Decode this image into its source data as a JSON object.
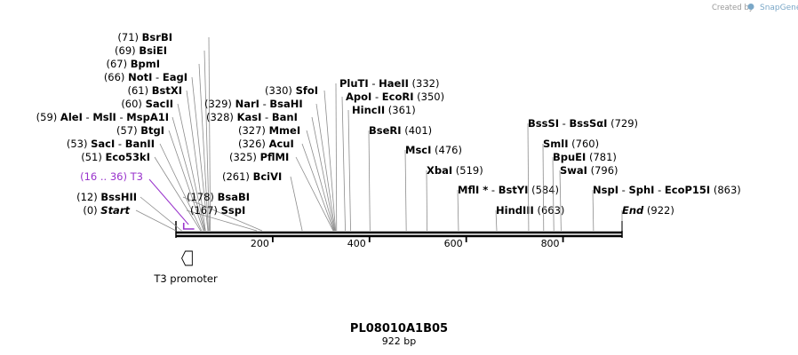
{
  "credit": {
    "prefix": "Created by",
    "brand": "SnapGene"
  },
  "sequence": {
    "name": "PL08010A1B05",
    "length_label": "922 bp",
    "length": 922
  },
  "axis_ticks": [
    {
      "value": 200,
      "label": "200"
    },
    {
      "value": 400,
      "label": "400"
    },
    {
      "value": 600,
      "label": "600"
    },
    {
      "value": 800,
      "label": "800"
    }
  ],
  "features": [
    {
      "name": "T3 promoter",
      "start": 1,
      "end": 19,
      "strand": "reverse"
    }
  ],
  "primers": [
    {
      "name": "T3",
      "range": "(16 .. 36)",
      "start": 16,
      "end": 36
    }
  ],
  "sites": [
    {
      "id": "bsrbi",
      "pos_label": "(71)",
      "pos": 71,
      "names": [
        "BsrBI"
      ]
    },
    {
      "id": "bsiei",
      "pos_label": "(69)",
      "pos": 69,
      "names": [
        "BsiEI"
      ]
    },
    {
      "id": "bpmi",
      "pos_label": "(67)",
      "pos": 67,
      "names": [
        "BpmI"
      ]
    },
    {
      "id": "noti",
      "pos_label": "(66)",
      "pos": 66,
      "names": [
        "NotI",
        "EagI"
      ]
    },
    {
      "id": "bstxi",
      "pos_label": "(61)",
      "pos": 61,
      "names": [
        "BstXI"
      ]
    },
    {
      "id": "sacii",
      "pos_label": "(60)",
      "pos": 60,
      "names": [
        "SacII"
      ]
    },
    {
      "id": "alei",
      "pos_label": "(59)",
      "pos": 59,
      "names": [
        "AleI",
        "MslI",
        "MspA1I"
      ]
    },
    {
      "id": "btgi",
      "pos_label": "(57)",
      "pos": 57,
      "names": [
        "BtgI"
      ]
    },
    {
      "id": "saci",
      "pos_label": "(53)",
      "pos": 53,
      "names": [
        "SacI",
        "BanII"
      ]
    },
    {
      "id": "eco53ki",
      "pos_label": "(51)",
      "pos": 51,
      "names": [
        "Eco53kI"
      ]
    },
    {
      "id": "bsshii",
      "pos_label": "(12)",
      "pos": 12,
      "names": [
        "BssHII"
      ]
    },
    {
      "id": "start",
      "pos_label": "(0)",
      "pos": 0,
      "names": [
        "Start"
      ]
    },
    {
      "id": "bsabi",
      "pos_label": "(178)",
      "pos": 178,
      "names": [
        "BsaBI"
      ]
    },
    {
      "id": "sspi",
      "pos_label": "(167)",
      "pos": 167,
      "names": [
        "SspI"
      ]
    },
    {
      "id": "sfoi",
      "pos_label": "(330)",
      "pos": 330,
      "names": [
        "SfoI"
      ]
    },
    {
      "id": "nari",
      "pos_label": "(329)",
      "pos": 329,
      "names": [
        "NarI",
        "BsaHI"
      ]
    },
    {
      "id": "kasi",
      "pos_label": "(328)",
      "pos": 328,
      "names": [
        "KasI",
        "BanI"
      ]
    },
    {
      "id": "mmei",
      "pos_label": "(327)",
      "pos": 327,
      "names": [
        "MmeI"
      ]
    },
    {
      "id": "acui",
      "pos_label": "(326)",
      "pos": 326,
      "names": [
        "AcuI"
      ]
    },
    {
      "id": "pflmi",
      "pos_label": "(325)",
      "pos": 325,
      "names": [
        "PflMI"
      ]
    },
    {
      "id": "bcivi",
      "pos_label": "(261)",
      "pos": 261,
      "names": [
        "BciVI"
      ]
    },
    {
      "id": "pluti",
      "pos_label": "(332)",
      "pos": 332,
      "names": [
        "PluTI",
        "HaeII"
      ]
    },
    {
      "id": "apoi",
      "pos_label": "(350)",
      "pos": 350,
      "names": [
        "ApoI",
        "EcoRI"
      ]
    },
    {
      "id": "hincii",
      "pos_label": "(361)",
      "pos": 361,
      "names": [
        "HincII"
      ]
    },
    {
      "id": "bseri",
      "pos_label": "(401)",
      "pos": 401,
      "names": [
        "BseRI"
      ]
    },
    {
      "id": "msci",
      "pos_label": "(476)",
      "pos": 476,
      "names": [
        "MscI"
      ]
    },
    {
      "id": "xbai",
      "pos_label": "(519)",
      "pos": 519,
      "names": [
        "XbaI"
      ]
    },
    {
      "id": "mfli",
      "pos_label": "(584)",
      "pos": 584,
      "names": [
        "MflI *",
        "BstYI"
      ]
    },
    {
      "id": "hindiii",
      "pos_label": "(663)",
      "pos": 663,
      "names": [
        "HindIII"
      ]
    },
    {
      "id": "basssi",
      "pos_label": "(729)",
      "pos": 729,
      "names": [
        "BssSI",
        "BssSαI"
      ]
    },
    {
      "id": "smli",
      "pos_label": "(760)",
      "pos": 760,
      "names": [
        "SmlI"
      ]
    },
    {
      "id": "bpuei",
      "pos_label": "(781)",
      "pos": 781,
      "names": [
        "BpuEI"
      ]
    },
    {
      "id": "swai",
      "pos_label": "(796)",
      "pos": 796,
      "names": [
        "SwaI"
      ]
    },
    {
      "id": "nspi",
      "pos_label": "(863)",
      "pos": 863,
      "names": [
        "NspI",
        "SphI",
        "EcoP15I"
      ]
    },
    {
      "id": "end",
      "pos_label": "(922)",
      "pos": 922,
      "names": [
        "End"
      ]
    }
  ]
}
